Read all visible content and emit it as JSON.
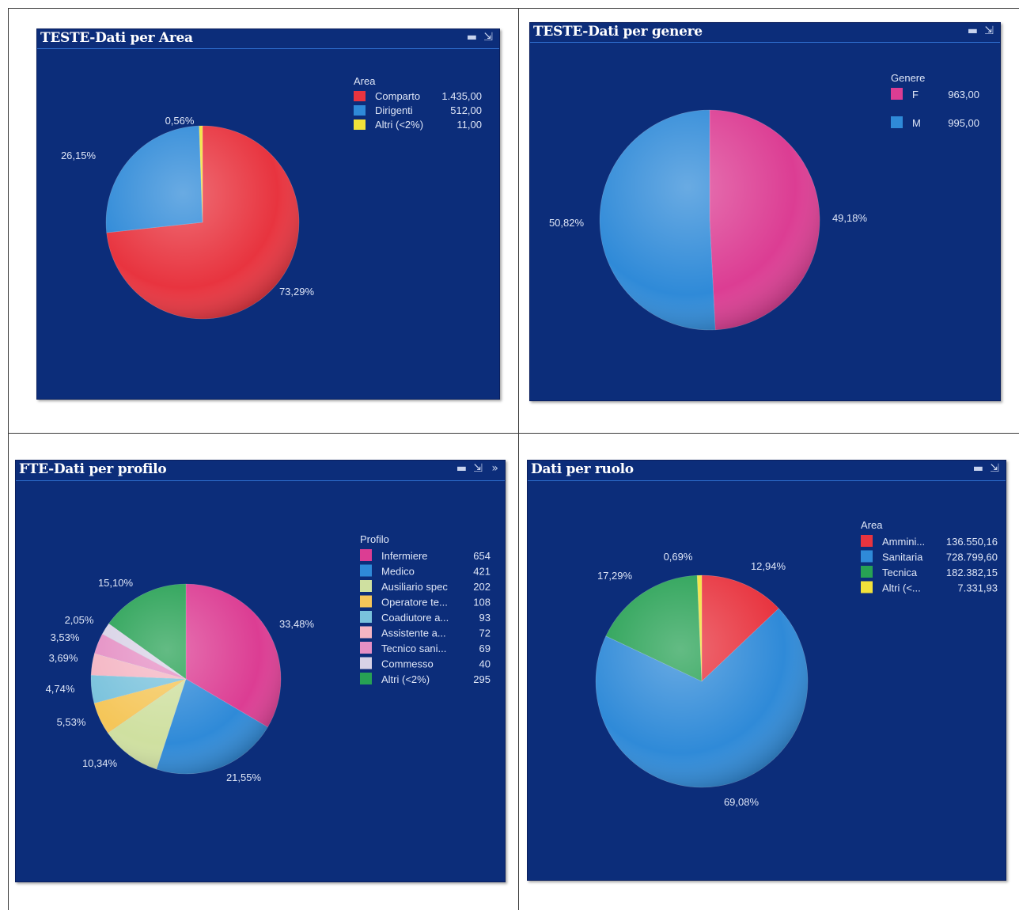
{
  "panels": [
    {
      "title": "TESTE-Dati per Area",
      "tools": [
        "▬",
        "⇲"
      ],
      "chart_data": {
        "type": "pie",
        "title": "TESTE-Dati per Area",
        "legend_title": "Area",
        "legend_placement": "top-right",
        "slices": [
          {
            "label": "Comparto",
            "value_label": "1.435,00",
            "value": 1435.0,
            "pct_label": "73,29%",
            "color": "#e8343f"
          },
          {
            "label": "Dirigenti",
            "value_label": "512,00",
            "value": 512.0,
            "pct_label": "26,15%",
            "color": "#2f8ad8"
          },
          {
            "label": "Altri (<2%)",
            "value_label": "11,00",
            "value": 11.0,
            "pct_label": "0,56%",
            "color": "#f2e23a"
          }
        ]
      }
    },
    {
      "title": "TESTE-Dati per genere",
      "tools": [
        "▬",
        "⇲"
      ],
      "chart_data": {
        "type": "pie",
        "title": "TESTE-Dati per genere",
        "legend_title": "Genere",
        "legend_placement": "top-right",
        "slices": [
          {
            "label": "F",
            "value_label": "963,00",
            "value": 963.0,
            "pct_label": "49,18%",
            "color": "#dc3d93"
          },
          {
            "label": "M",
            "value_label": "995,00",
            "value": 995.0,
            "pct_label": "50,82%",
            "color": "#2f8ad8"
          }
        ]
      }
    },
    {
      "title": "FTE-Dati per profilo",
      "tools": [
        "▬",
        "⇲",
        "»"
      ],
      "chart_data": {
        "type": "pie",
        "title": "FTE-Dati per profilo",
        "legend_title": "Profilo",
        "legend_placement": "right",
        "slices": [
          {
            "label": "Infermiere",
            "value_label": "654",
            "value": 654,
            "pct_label": "33,48%",
            "color": "#dc3d93"
          },
          {
            "label": "Medico",
            "value_label": "421",
            "value": 421,
            "pct_label": "21,55%",
            "color": "#2f8ad8"
          },
          {
            "label": "Ausiliario spec",
            "value_label": "202",
            "value": 202,
            "pct_label": "10,34%",
            "color": "#cfe0a0"
          },
          {
            "label": "Operatore te...",
            "value_label": "108",
            "value": 108,
            "pct_label": "5,53%",
            "color": "#f5c659"
          },
          {
            "label": "Coadiutore a...",
            "value_label": "93",
            "value": 93,
            "pct_label": "4,74%",
            "color": "#79c2dc"
          },
          {
            "label": "Assistente a...",
            "value_label": "72",
            "value": 72,
            "pct_label": "3,69%",
            "color": "#f4b5c3"
          },
          {
            "label": "Tecnico sani...",
            "value_label": "69",
            "value": 69,
            "pct_label": "3,53%",
            "color": "#e58fc4"
          },
          {
            "label": "Commesso",
            "value_label": "40",
            "value": 40,
            "pct_label": "2,05%",
            "color": "#d8d2e6"
          },
          {
            "label": "Altri (<2%)",
            "value_label": "295",
            "value": 295,
            "pct_label": "15,10%",
            "color": "#27a154"
          }
        ]
      }
    },
    {
      "title": "Dati per ruolo",
      "tools": [
        "▬",
        "⇲"
      ],
      "chart_data": {
        "type": "pie",
        "title": "Dati per ruolo",
        "legend_title": "Area",
        "legend_placement": "top-right",
        "slices": [
          {
            "label": "Ammini...",
            "value_label": "136.550,16",
            "value": 136550.16,
            "pct_label": "12,94%",
            "color": "#e8343f"
          },
          {
            "label": "Sanitaria",
            "value_label": "728.799,60",
            "value": 728799.6,
            "pct_label": "69,08%",
            "color": "#2f8ad8"
          },
          {
            "label": "Tecnica",
            "value_label": "182.382,15",
            "value": 182382.15,
            "pct_label": "17,29%",
            "color": "#27a154"
          },
          {
            "label": "Altri (<...",
            "value_label": "7.331,93",
            "value": 7331.93,
            "pct_label": "0,69%",
            "color": "#f2e23a"
          }
        ]
      }
    }
  ]
}
